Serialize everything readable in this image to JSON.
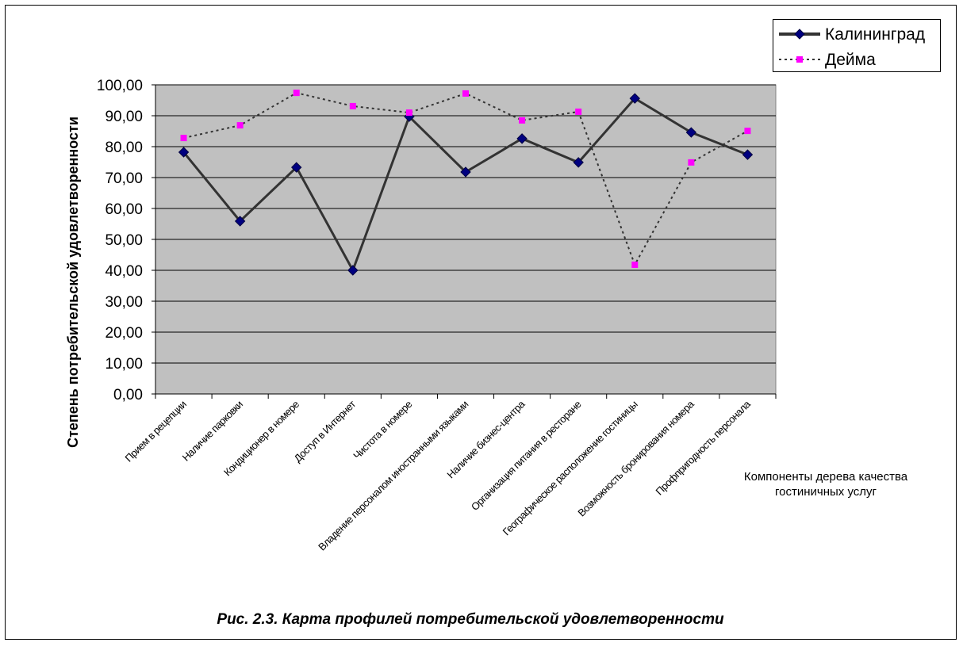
{
  "chart_data": {
    "type": "line",
    "title": "Рис. 2.3. Карта профилей потребительской удовлетворенности",
    "ylabel": "Степень потребительской удовлетворенности",
    "xlabel": [
      "Компоненты дерева качества",
      "гостиничных услуг"
    ],
    "ylim": [
      0,
      100
    ],
    "yticks": [
      "0,00",
      "10,00",
      "20,00",
      "30,00",
      "40,00",
      "50,00",
      "60,00",
      "70,00",
      "80,00",
      "90,00",
      "100,00"
    ],
    "grid": true,
    "legend_position": "top-right",
    "categories": [
      "Прием в рецепции",
      "Наличие парковки",
      "Кондиционер в номере",
      "Доступ в Интернет",
      "Чистота в номере",
      "Владение персоналом иностранными языками",
      "Наличие бизнес-центра",
      "Организация питания в ресторане",
      "Географическое расположение гостиницы",
      "Возможность бронирования номера",
      "Профпригодность персонала"
    ],
    "series": [
      {
        "name": "Калининград",
        "color": "#333333",
        "marker_color": "#000080",
        "style": "solid",
        "values": [
          78.2,
          55.9,
          73.3,
          40.0,
          89.7,
          71.8,
          82.6,
          74.9,
          95.6,
          84.6,
          77.4
        ]
      },
      {
        "name": "Дейма",
        "color": "#333333",
        "marker_color": "#ff00ff",
        "style": "dotted",
        "values": [
          82.8,
          86.9,
          97.4,
          93.1,
          91.0,
          97.2,
          88.5,
          91.3,
          41.8,
          74.9,
          85.1
        ]
      }
    ],
    "plot_bg": "#c0c0c0"
  }
}
